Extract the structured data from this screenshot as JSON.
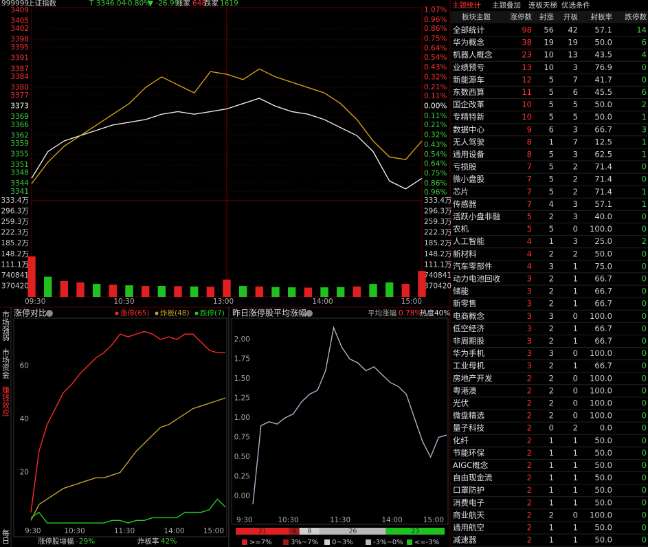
{
  "header": {
    "code": "999999",
    "name": "上证指数",
    "price": "T 3346.04",
    "change_pct": "-0.80%",
    "change": "▼ -26.99",
    "up_label": "涨家",
    "up_count": "648",
    "down_label": "跌家",
    "down_count": "1619"
  },
  "side_tabs": [
    "市场强弱",
    "市场资金",
    "赚钱效应",
    "每日"
  ],
  "chart_data": [
    {
      "type": "line",
      "x": [
        "09:30",
        "09:40",
        "09:50",
        "10:00",
        "10:10",
        "10:20",
        "10:30",
        "10:40",
        "10:50",
        "11:00",
        "11:10",
        "11:20",
        "13:00",
        "13:10",
        "13:20",
        "13:30",
        "13:40",
        "13:50",
        "14:00",
        "14:10",
        "14:20",
        "14:30",
        "14:40",
        "14:50",
        "15:00"
      ],
      "series": [
        {
          "color": "#e8e8e8",
          "values": [
            3346,
            3356,
            3360,
            3362,
            3364,
            3366,
            3367,
            3368,
            3370,
            3371,
            3370,
            3371,
            3372,
            3374,
            3376,
            3373,
            3371,
            3370,
            3368,
            3365,
            3362,
            3356,
            3345,
            3342,
            3346
          ]
        },
        {
          "color": "#d4a017",
          "values": [
            3344,
            3352,
            3358,
            3362,
            3366,
            3370,
            3374,
            3380,
            3384,
            3381,
            3378,
            3386,
            3385,
            3383,
            3387,
            3384,
            3382,
            3380,
            3378,
            3374,
            3368,
            3360,
            3354,
            3353,
            3360
          ]
        }
      ],
      "ylim": [
        3337.6,
        3410
      ],
      "yticks": [
        3409,
        3405,
        3402,
        3398,
        3395,
        3391,
        3387,
        3384,
        3380,
        3377,
        3373,
        3369,
        3366,
        3362,
        3359,
        3355,
        3351,
        3348,
        3344,
        3341
      ],
      "y2lim": [
        -1.05,
        1.096
      ],
      "y2ticks": [
        {
          "value": 1.07,
          "label": "1.07%"
        },
        {
          "value": 0.96,
          "label": "0.96%"
        },
        {
          "value": 0.86,
          "label": "0.86%"
        },
        {
          "value": 0.75,
          "label": "0.75%"
        },
        {
          "value": 0.64,
          "label": "0.64%"
        },
        {
          "value": 0.54,
          "label": "0.54%"
        },
        {
          "value": 0.43,
          "label": "0.43%"
        },
        {
          "value": 0.32,
          "label": "0.32%"
        },
        {
          "value": 0.21,
          "label": "0.21%"
        },
        {
          "value": 0.11,
          "label": "0.11%"
        },
        {
          "value": 0,
          "label": "0.00%"
        },
        {
          "value": -0.11,
          "label": "0.11%"
        },
        {
          "value": -0.21,
          "label": "0.21%"
        },
        {
          "value": -0.32,
          "label": "0.32%"
        },
        {
          "value": -0.43,
          "label": "0.43%"
        },
        {
          "value": -0.54,
          "label": "0.54%"
        },
        {
          "value": -0.64,
          "label": "0.64%"
        },
        {
          "value": -0.75,
          "label": "0.75%"
        },
        {
          "value": -0.86,
          "label": "0.86%"
        },
        {
          "value": -0.96,
          "label": "0.96%"
        }
      ],
      "grid": true
    },
    {
      "type": "bar",
      "x": [
        "09:30",
        "09:40",
        "09:50",
        "10:00",
        "10:10",
        "10:20",
        "10:30",
        "10:40",
        "10:50",
        "11:00",
        "11:10",
        "11:20",
        "13:00",
        "13:10",
        "13:20",
        "13:30",
        "13:40",
        "13:50",
        "14:00",
        "14:10",
        "14:20",
        "14:30",
        "14:40",
        "14:50",
        "15:00"
      ],
      "values": [
        1400000,
        700000,
        550000,
        500000,
        450000,
        420000,
        400000,
        380000,
        380000,
        370000,
        360000,
        350000,
        600000,
        380000,
        360000,
        340000,
        330000,
        320000,
        330000,
        340000,
        360000,
        450000,
        500000,
        450000,
        900000
      ],
      "colors": [
        "#e02020",
        "#20c020",
        "#e02020",
        "#e02020",
        "#20c020",
        "#e02020",
        "#20c020",
        "#e02020",
        "#20c020",
        "#e02020",
        "#20c020",
        "#e02020",
        "#e02020",
        "#20c020",
        "#e02020",
        "#20c020",
        "#20c020",
        "#e02020",
        "#20c020",
        "#20c020",
        "#e02020",
        "#20c020",
        "#20c020",
        "#e02020",
        "#e02020"
      ],
      "ylim": [
        0,
        3333784
      ],
      "yticks": [
        {
          "value": 3333784,
          "label": "333.4万"
        },
        {
          "value": 2963364,
          "label": "296.3万"
        },
        {
          "value": 2592943,
          "label": "259.3万"
        },
        {
          "value": 2222523,
          "label": "222.3万"
        },
        {
          "value": 1852102,
          "label": "185.2万"
        },
        {
          "value": 1481682,
          "label": "148.2万"
        },
        {
          "value": 1111261,
          "label": "111.1万"
        },
        740841,
        370420
      ],
      "xticks": [
        "09:30",
        "10:30",
        "13:00",
        "14:00",
        "15:00"
      ]
    },
    {
      "type": "line",
      "title": "涨停对比",
      "x": [
        "09:30",
        "09:40",
        "09:50",
        "10:00",
        "10:10",
        "10:20",
        "10:30",
        "10:40",
        "10:50",
        "11:00",
        "11:10",
        "11:20",
        "11:30",
        "13:10",
        "13:20",
        "13:30",
        "13:40",
        "13:50",
        "14:00",
        "14:10",
        "14:20",
        "14:30",
        "14:40",
        "14:50",
        "15:00"
      ],
      "series": [
        {
          "name": "涨停(65)",
          "color": "#ff2a2a",
          "values": [
            5,
            28,
            38,
            44,
            50,
            53,
            57,
            60,
            63,
            65,
            68,
            72,
            71,
            72,
            73,
            72,
            70,
            71,
            70,
            72,
            72,
            69,
            66,
            65,
            65
          ]
        },
        {
          "name": "炸板(48)",
          "color": "#c8a030",
          "values": [
            2,
            8,
            10,
            12,
            14,
            15,
            16,
            17,
            18,
            18,
            19,
            20,
            24,
            28,
            31,
            34,
            37,
            38,
            40,
            42,
            44,
            45,
            46,
            47,
            48
          ]
        },
        {
          "name": "跌停(7)",
          "color": "#20d020",
          "values": [
            3,
            5,
            1,
            1,
            1,
            1,
            1,
            1,
            1,
            1,
            2,
            2,
            1,
            2,
            2,
            3,
            3,
            3,
            3,
            5,
            5,
            5,
            6,
            10,
            7
          ]
        }
      ],
      "ylim": [
        0,
        78
      ],
      "yticks": [
        20,
        40,
        60
      ],
      "xticks": [
        {
          "value": "09:30",
          "label": "9:30"
        },
        "10:30",
        "11:30",
        "14:00",
        "15:00"
      ],
      "footer": [
        {
          "label": "涨停股增幅",
          "value": "-29%"
        },
        {
          "label": "炸板率",
          "value": "42%"
        }
      ]
    },
    {
      "type": "line",
      "title": "昨日涨停股平均涨幅",
      "avg_label": "平均涨幅",
      "avg_value": "0.78%",
      "heat": "热度40%",
      "x": [
        "09:30",
        "09:40",
        "09:50",
        "10:00",
        "10:10",
        "10:20",
        "10:30",
        "10:40",
        "10:50",
        "11:00",
        "11:10",
        "11:20",
        "11:30",
        "13:10",
        "13:20",
        "13:30",
        "13:40",
        "13:50",
        "14:00",
        "14:10",
        "14:20",
        "14:30",
        "14:40",
        "14:50",
        "15:00"
      ],
      "series": [
        {
          "color": "#a8b4c8",
          "values": [
            -0.1,
            0.9,
            0.95,
            0.92,
            1.0,
            1.05,
            1.2,
            1.3,
            1.35,
            1.6,
            2.15,
            1.9,
            1.75,
            1.7,
            1.6,
            1.65,
            1.55,
            1.45,
            1.4,
            1.3,
            1.0,
            0.7,
            0.5,
            0.75,
            0.78
          ]
        }
      ],
      "ylim": [
        -0.2,
        2.27
      ],
      "yticks": [
        {
          "value": 0,
          "label": "0.00"
        },
        {
          "value": 0.25,
          "label": "0.25"
        },
        {
          "value": 0.5,
          "label": "0.50"
        },
        {
          "value": 0.75,
          "label": "0.75"
        },
        {
          "value": 1,
          "label": "1.00"
        },
        {
          "value": 1.25,
          "label": "1.25"
        },
        {
          "value": 1.5,
          "label": "1.50"
        },
        {
          "value": 1.75,
          "label": "1.75"
        },
        {
          "value": 2,
          "label": "2.00"
        }
      ],
      "xticks": [
        {
          "value": "09:30",
          "label": "9:30"
        },
        "10:30",
        "11:30",
        "14:00",
        "15:00"
      ],
      "distribution": {
        "categories": [
          ">=7%",
          "3%~7%",
          "0~3%",
          "-3%~0%",
          "<=-3%"
        ],
        "values": [
          21,
          4,
          8,
          26,
          23
        ],
        "colors": [
          "#e02020",
          "#a01818",
          "#d0d0d0",
          "#b8b8b8",
          "#20c020"
        ]
      }
    }
  ],
  "theme_table": {
    "tabs": [
      "主题统计",
      "主题叠加",
      "连板天梯",
      "优选条件"
    ],
    "columns": [
      "板块主题",
      "涨停数",
      "封涨",
      "开板",
      "封板率",
      "跌停数"
    ],
    "rows": [
      [
        "全部统计",
        "98",
        "56",
        "42",
        "57.1",
        "14"
      ],
      [
        "华为概念",
        "38",
        "19",
        "19",
        "50.0",
        "6"
      ],
      [
        "机器人概念",
        "23",
        "10",
        "13",
        "43.5",
        "4"
      ],
      [
        "业绩预亏",
        "13",
        "10",
        "3",
        "76.9",
        "0"
      ],
      [
        "新能源车",
        "12",
        "5",
        "7",
        "41.7",
        "0"
      ],
      [
        "东数西算",
        "11",
        "5",
        "6",
        "45.5",
        "6"
      ],
      [
        "国企改革",
        "10",
        "5",
        "5",
        "50.0",
        "2"
      ],
      [
        "专精特新",
        "10",
        "5",
        "5",
        "50.0",
        "1"
      ],
      [
        "数据中心",
        "9",
        "6",
        "3",
        "66.7",
        "3"
      ],
      [
        "无人驾驶",
        "8",
        "1",
        "7",
        "12.5",
        "1"
      ],
      [
        "通用设备",
        "8",
        "5",
        "3",
        "62.5",
        "1"
      ],
      [
        "亏损股",
        "7",
        "5",
        "2",
        "71.4",
        "0"
      ],
      [
        "微小盘股",
        "7",
        "5",
        "2",
        "71.4",
        "0"
      ],
      [
        "芯片",
        "7",
        "5",
        "2",
        "71.4",
        "1"
      ],
      [
        "传感器",
        "7",
        "4",
        "3",
        "57.1",
        "1"
      ],
      [
        "活跃小盘非融",
        "5",
        "2",
        "3",
        "40.0",
        "0"
      ],
      [
        "农机",
        "5",
        "5",
        "0",
        "100.0",
        "0"
      ],
      [
        "人工智能",
        "4",
        "1",
        "3",
        "25.0",
        "2"
      ],
      [
        "新材料",
        "4",
        "2",
        "2",
        "50.0",
        "0"
      ],
      [
        "汽车零部件",
        "4",
        "3",
        "1",
        "75.0",
        "0"
      ],
      [
        "动力电池回收",
        "3",
        "2",
        "1",
        "66.7",
        "0"
      ],
      [
        "储能",
        "3",
        "2",
        "1",
        "66.7",
        "0"
      ],
      [
        "新零售",
        "3",
        "2",
        "1",
        "66.7",
        "0"
      ],
      [
        "电商概念",
        "3",
        "3",
        "0",
        "100.0",
        "0"
      ],
      [
        "低空经济",
        "3",
        "2",
        "1",
        "66.7",
        "0"
      ],
      [
        "非周期股",
        "3",
        "2",
        "1",
        "66.7",
        "0"
      ],
      [
        "华为手机",
        "3",
        "3",
        "0",
        "100.0",
        "0"
      ],
      [
        "工业母机",
        "3",
        "2",
        "1",
        "66.7",
        "0"
      ],
      [
        "房地产开发",
        "2",
        "2",
        "0",
        "100.0",
        "0"
      ],
      [
        "粤港澳",
        "2",
        "2",
        "0",
        "100.0",
        "0"
      ],
      [
        "光伏",
        "2",
        "2",
        "0",
        "100.0",
        "0"
      ],
      [
        "微盘精选",
        "2",
        "2",
        "0",
        "100.0",
        "0"
      ],
      [
        "量子科技",
        "2",
        "0",
        "2",
        "0.0",
        "0"
      ],
      [
        "化纤",
        "2",
        "1",
        "1",
        "50.0",
        "0"
      ],
      [
        "节能环保",
        "2",
        "1",
        "1",
        "50.0",
        "0"
      ],
      [
        "AIGC概念",
        "2",
        "1",
        "1",
        "50.0",
        "0"
      ],
      [
        "自由现金流",
        "2",
        "1",
        "1",
        "50.0",
        "0"
      ],
      [
        "口罩防护",
        "2",
        "1",
        "1",
        "50.0",
        "0"
      ],
      [
        "消费电子",
        "2",
        "1",
        "1",
        "50.0",
        "0"
      ],
      [
        "商业航天",
        "2",
        "2",
        "0",
        "100.0",
        "0"
      ],
      [
        "通用航空",
        "2",
        "1",
        "1",
        "50.0",
        "0"
      ],
      [
        "减速器",
        "2",
        "1",
        "1",
        "50.0",
        "0"
      ]
    ]
  }
}
